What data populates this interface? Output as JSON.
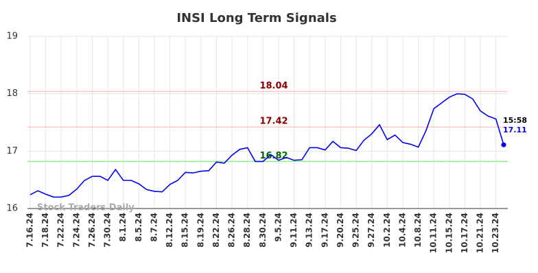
{
  "chart_data": {
    "type": "line",
    "title": "INSI Long Term Signals",
    "categories": [
      "7.16.24",
      null,
      "7.18.24",
      null,
      "7.22.24",
      null,
      "7.24.24",
      null,
      "7.26.24",
      null,
      "7.30.24",
      null,
      "8.1.24",
      null,
      "8.5.24",
      null,
      "8.7.24",
      null,
      "8.12.24",
      null,
      "8.15.24",
      null,
      "8.19.24",
      null,
      "8.22.24",
      null,
      "8.26.24",
      null,
      "8.28.24",
      null,
      "8.30.24",
      null,
      "9.5.24",
      null,
      "9.11.24",
      null,
      "9.13.24",
      null,
      "9.17.24",
      null,
      "9.20.24",
      null,
      "9.25.24",
      null,
      "9.27.24",
      null,
      "10.2.24",
      null,
      "10.4.24",
      null,
      "10.8.24",
      null,
      "10.11.24",
      null,
      "10.15.24",
      null,
      "10.17.24",
      null,
      "10.21.24",
      null,
      "10.23.24",
      null
    ],
    "series": [
      {
        "name": "INSI",
        "color": "#0000ee",
        "values": [
          16.24,
          16.31,
          16.25,
          16.2,
          16.2,
          16.23,
          16.34,
          16.49,
          16.56,
          16.56,
          16.49,
          16.68,
          16.49,
          16.49,
          16.43,
          16.33,
          16.3,
          16.29,
          16.42,
          16.49,
          16.63,
          16.62,
          16.65,
          16.66,
          16.81,
          16.79,
          16.93,
          17.03,
          17.06,
          16.82,
          16.82,
          16.94,
          16.84,
          16.89,
          16.84,
          16.85,
          17.06,
          17.06,
          17.02,
          17.17,
          17.06,
          17.05,
          17.01,
          17.19,
          17.3,
          17.46,
          17.2,
          17.28,
          17.15,
          17.12,
          17.07,
          17.36,
          17.74,
          17.84,
          17.94,
          18.0,
          17.99,
          17.91,
          17.7,
          17.61,
          17.56,
          17.11
        ]
      }
    ],
    "ylim": [
      16,
      19
    ],
    "yticks": [
      16,
      17,
      18,
      19
    ],
    "grid": true,
    "hlines": [
      {
        "value": 18.04,
        "color": "#ffc8c8",
        "label_color": "#8b0000"
      },
      {
        "value": 17.42,
        "color": "#ffc8c8",
        "label_color": "#8b0000"
      },
      {
        "value": 16.82,
        "color": "#90ee90",
        "label_color": "#006400"
      }
    ],
    "last_time": "15:58",
    "watermark": "Stock Traders Daily"
  }
}
